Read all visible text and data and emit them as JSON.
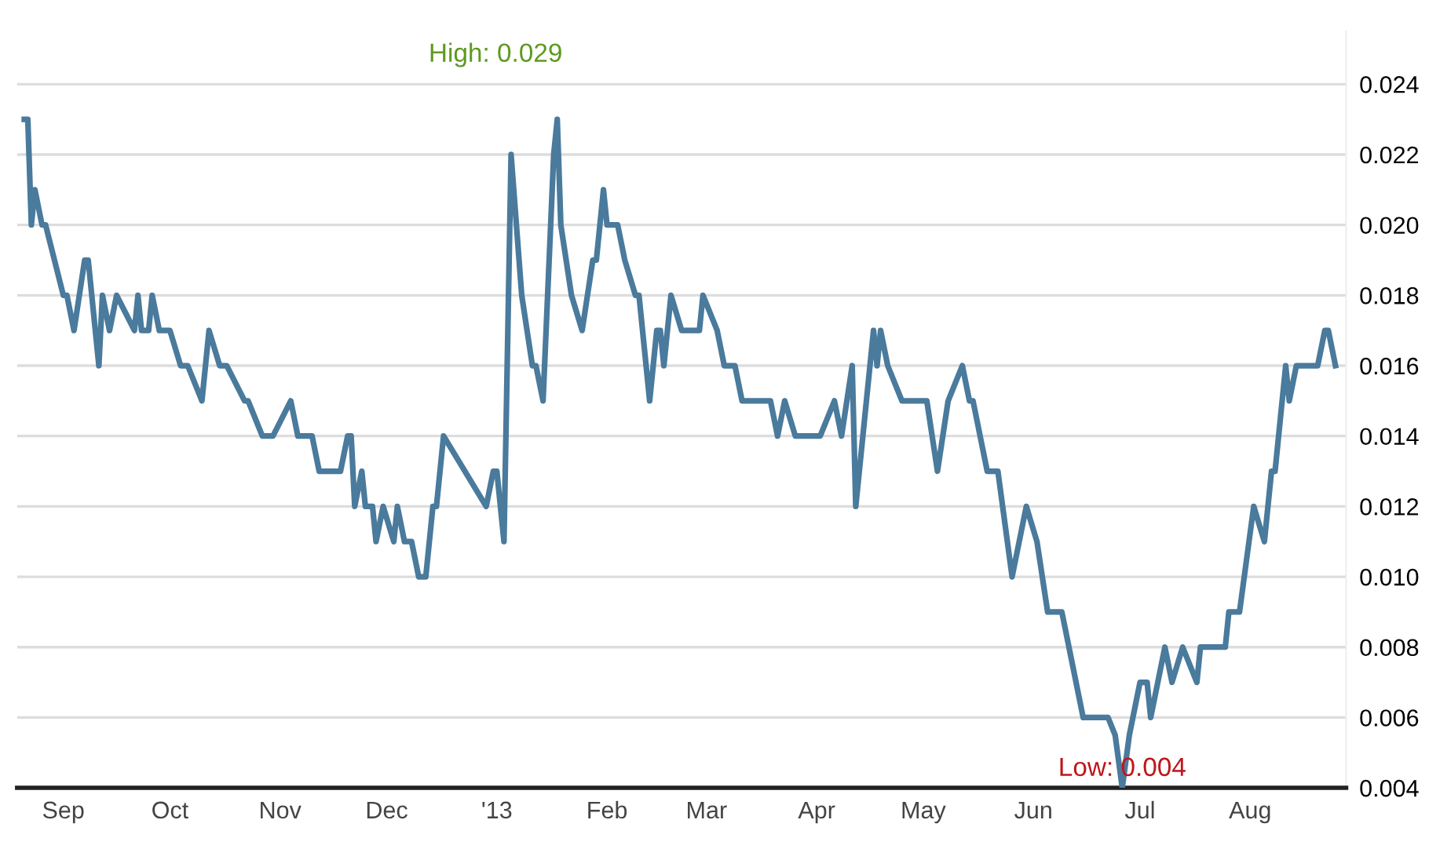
{
  "chart_data": {
    "type": "line",
    "x": [
      "2012-08-21",
      "2012-08-22",
      "2012-08-23",
      "2012-08-24",
      "2012-08-26",
      "2012-08-27",
      "2012-09-01",
      "2012-09-02",
      "2012-09-04",
      "2012-09-07",
      "2012-09-08",
      "2012-09-11",
      "2012-09-12",
      "2012-09-14",
      "2012-09-16",
      "2012-09-21",
      "2012-09-22",
      "2012-09-23",
      "2012-09-25",
      "2012-09-26",
      "2012-09-28",
      "2012-10-01",
      "2012-10-04",
      "2012-10-06",
      "2012-10-10",
      "2012-10-12",
      "2012-10-15",
      "2012-10-17",
      "2012-10-22",
      "2012-10-23",
      "2012-10-27",
      "2012-10-30",
      "2012-11-04",
      "2012-11-06",
      "2012-11-10",
      "2012-11-12",
      "2012-11-18",
      "2012-11-20",
      "2012-11-21",
      "2012-11-22",
      "2012-11-24",
      "2012-11-25",
      "2012-11-27",
      "2012-11-28",
      "2012-11-30",
      "2012-12-03",
      "2012-12-04",
      "2012-12-06",
      "2012-12-08",
      "2012-12-10",
      "2012-12-12",
      "2012-12-14",
      "2012-12-15",
      "2012-12-17",
      "2012-12-29",
      "2012-12-31",
      "2013-01-01",
      "2013-01-03",
      "2013-01-05",
      "2013-01-08",
      "2013-01-11",
      "2013-01-12",
      "2013-01-14",
      "2013-01-17",
      "2013-01-18",
      "2013-01-19",
      "2013-01-22",
      "2013-01-25",
      "2013-01-28",
      "2013-01-29",
      "2013-01-31",
      "2013-02-01",
      "2013-02-04",
      "2013-02-06",
      "2013-02-09",
      "2013-02-10",
      "2013-02-13",
      "2013-02-15",
      "2013-02-16",
      "2013-02-17",
      "2013-02-19",
      "2013-02-22",
      "2013-02-27",
      "2013-02-28",
      "2013-03-04",
      "2013-03-06",
      "2013-03-09",
      "2013-03-11",
      "2013-03-19",
      "2013-03-21",
      "2013-03-23",
      "2013-03-26",
      "2013-04-02",
      "2013-04-06",
      "2013-04-08",
      "2013-04-11",
      "2013-04-12",
      "2013-04-17",
      "2013-04-18",
      "2013-04-19",
      "2013-04-21",
      "2013-04-25",
      "2013-05-02",
      "2013-05-05",
      "2013-05-08",
      "2013-05-12",
      "2013-05-14",
      "2013-05-15",
      "2013-05-19",
      "2013-05-22",
      "2013-05-26",
      "2013-05-30",
      "2013-06-02",
      "2013-06-05",
      "2013-06-09",
      "2013-06-11",
      "2013-06-15",
      "2013-06-22",
      "2013-06-24",
      "2013-06-26",
      "2013-06-28",
      "2013-07-01",
      "2013-07-03",
      "2013-07-04",
      "2013-07-08",
      "2013-07-10",
      "2013-07-13",
      "2013-07-17",
      "2013-07-18",
      "2013-07-25",
      "2013-07-26",
      "2013-07-29",
      "2013-08-02",
      "2013-08-05",
      "2013-08-07",
      "2013-08-08",
      "2013-08-11",
      "2013-08-12",
      "2013-08-14",
      "2013-08-20",
      "2013-08-22",
      "2013-08-23",
      "2013-08-25"
    ],
    "series": [
      {
        "color": "#4a7a9c",
        "values": [
          0.023,
          0.023,
          0.02,
          0.021,
          0.02,
          0.02,
          0.018,
          0.018,
          0.017,
          0.019,
          0.019,
          0.016,
          0.018,
          0.017,
          0.018,
          0.017,
          0.018,
          0.017,
          0.017,
          0.018,
          0.017,
          0.017,
          0.016,
          0.016,
          0.015,
          0.017,
          0.016,
          0.016,
          0.015,
          0.015,
          0.014,
          0.014,
          0.015,
          0.014,
          0.014,
          0.013,
          0.013,
          0.014,
          0.014,
          0.012,
          0.013,
          0.012,
          0.012,
          0.011,
          0.012,
          0.011,
          0.012,
          0.011,
          0.011,
          0.01,
          0.01,
          0.012,
          0.012,
          0.014,
          0.012,
          0.013,
          0.013,
          0.011,
          0.022,
          0.018,
          0.016,
          0.016,
          0.015,
          0.022,
          0.023,
          0.02,
          0.018,
          0.017,
          0.019,
          0.019,
          0.021,
          0.02,
          0.02,
          0.019,
          0.018,
          0.018,
          0.015,
          0.017,
          0.017,
          0.016,
          0.018,
          0.017,
          0.017,
          0.018,
          0.017,
          0.016,
          0.016,
          0.015,
          0.015,
          0.014,
          0.015,
          0.014,
          0.014,
          0.015,
          0.014,
          0.016,
          0.012,
          0.017,
          0.016,
          0.017,
          0.016,
          0.015,
          0.015,
          0.013,
          0.015,
          0.016,
          0.015,
          0.015,
          0.013,
          0.013,
          0.01,
          0.012,
          0.011,
          0.009,
          0.009,
          0.008,
          0.006,
          0.006,
          0.0055,
          0.004,
          0.0055,
          0.007,
          0.007,
          0.006,
          0.008,
          0.007,
          0.008,
          0.007,
          0.008,
          0.008,
          0.009,
          0.009,
          0.012,
          0.011,
          0.013,
          0.013,
          0.016,
          0.015,
          0.016,
          0.016,
          0.017,
          0.017,
          0.016
        ]
      }
    ],
    "xlim": [
      "2012-08-19",
      "2013-08-28"
    ],
    "xticks": [
      {
        "value": "2012-09-01",
        "label": "Sep"
      },
      {
        "value": "2012-10-01",
        "label": "Oct"
      },
      {
        "value": "2012-11-01",
        "label": "Nov"
      },
      {
        "value": "2012-12-01",
        "label": "Dec"
      },
      {
        "value": "2013-01-01",
        "label": "'13"
      },
      {
        "value": "2013-02-01",
        "label": "Feb"
      },
      {
        "value": "2013-03-01",
        "label": "Mar"
      },
      {
        "value": "2013-04-01",
        "label": "Apr"
      },
      {
        "value": "2013-05-01",
        "label": "May"
      },
      {
        "value": "2013-06-01",
        "label": "Jun"
      },
      {
        "value": "2013-07-01",
        "label": "Jul"
      },
      {
        "value": "2013-08-01",
        "label": "Aug"
      }
    ],
    "ylim": [
      0.004,
      0.0255
    ],
    "yticks": [
      0.004,
      0.006,
      0.008,
      {
        "value": 0.01,
        "label": "0.010"
      },
      0.012,
      0.014,
      0.016,
      0.018,
      {
        "value": 0.02,
        "label": "0.020"
      },
      0.022,
      0.024
    ],
    "grid": "y",
    "legend": false,
    "marker": "none",
    "line_style": "solid",
    "annotations": [
      "High: 0.029",
      {
        "text": "Low: 0.004",
        "x": "2013-06-26",
        "y": 0.004
      }
    ]
  }
}
